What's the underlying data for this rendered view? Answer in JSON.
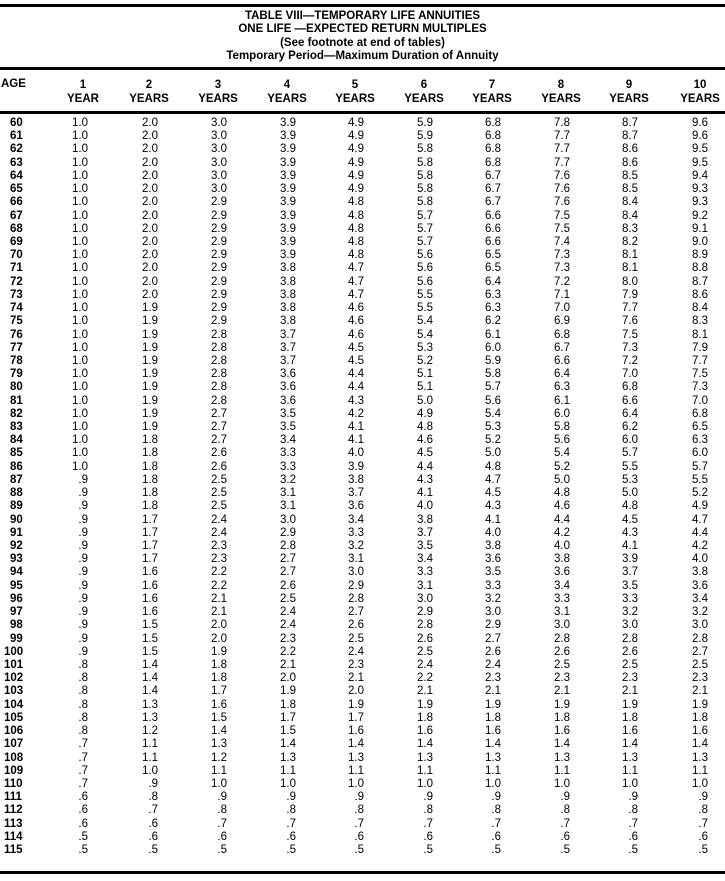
{
  "title": {
    "line1": "TABLE VIII—TEMPORARY LIFE ANNUITIES",
    "line2": "ONE LIFE —EXPECTED RETURN MULTIPLES",
    "line3": "(See footnote at end of tables)",
    "line4": "Temporary Period—Maximum Duration of Annuity"
  },
  "header": {
    "age": "AGE",
    "columns": [
      {
        "num": "1",
        "unit": "YEAR"
      },
      {
        "num": "2",
        "unit": "YEARS"
      },
      {
        "num": "3",
        "unit": "YEARS"
      },
      {
        "num": "4",
        "unit": "YEARS"
      },
      {
        "num": "5",
        "unit": "YEARS"
      },
      {
        "num": "6",
        "unit": "YEARS"
      },
      {
        "num": "7",
        "unit": "YEARS"
      },
      {
        "num": "8",
        "unit": "YEARS"
      },
      {
        "num": "9",
        "unit": "YEARS"
      },
      {
        "num": "10",
        "unit": "YEARS"
      }
    ]
  },
  "rows": [
    {
      "age": "60",
      "values": [
        "1.0",
        "2.0",
        "3.0",
        "3.9",
        "4.9",
        "5.9",
        "6.8",
        "7.8",
        "8.7",
        "9.6"
      ]
    },
    {
      "age": "61",
      "values": [
        "1.0",
        "2.0",
        "3.0",
        "3.9",
        "4.9",
        "5.9",
        "6.8",
        "7.7",
        "8.7",
        "9.6"
      ]
    },
    {
      "age": "62",
      "values": [
        "1.0",
        "2.0",
        "3.0",
        "3.9",
        "4.9",
        "5.8",
        "6.8",
        "7.7",
        "8.6",
        "9.5"
      ]
    },
    {
      "age": "63",
      "values": [
        "1.0",
        "2.0",
        "3.0",
        "3.9",
        "4.9",
        "5.8",
        "6.8",
        "7.7",
        "8.6",
        "9.5"
      ]
    },
    {
      "age": "64",
      "values": [
        "1.0",
        "2.0",
        "3.0",
        "3.9",
        "4.9",
        "5.8",
        "6.7",
        "7.6",
        "8.5",
        "9.4"
      ]
    },
    {
      "age": "65",
      "values": [
        "1.0",
        "2.0",
        "3.0",
        "3.9",
        "4.9",
        "5.8",
        "6.7",
        "7.6",
        "8.5",
        "9.3"
      ]
    },
    {
      "age": "66",
      "values": [
        "1.0",
        "2.0",
        "2.9",
        "3.9",
        "4.8",
        "5.8",
        "6.7",
        "7.6",
        "8.4",
        "9.3"
      ]
    },
    {
      "age": "67",
      "values": [
        "1.0",
        "2.0",
        "2.9",
        "3.9",
        "4.8",
        "5.7",
        "6.6",
        "7.5",
        "8.4",
        "9.2"
      ]
    },
    {
      "age": "68",
      "values": [
        "1.0",
        "2.0",
        "2.9",
        "3.9",
        "4.8",
        "5.7",
        "6.6",
        "7.5",
        "8.3",
        "9.1"
      ]
    },
    {
      "age": "69",
      "values": [
        "1.0",
        "2.0",
        "2.9",
        "3.9",
        "4.8",
        "5.7",
        "6.6",
        "7.4",
        "8.2",
        "9.0"
      ]
    },
    {
      "age": "70",
      "values": [
        "1.0",
        "2.0",
        "2.9",
        "3.9",
        "4.8",
        "5.6",
        "6.5",
        "7.3",
        "8.1",
        "8.9"
      ]
    },
    {
      "age": "71",
      "values": [
        "1.0",
        "2.0",
        "2.9",
        "3.8",
        "4.7",
        "5.6",
        "6.5",
        "7.3",
        "8.1",
        "8.8"
      ]
    },
    {
      "age": "72",
      "values": [
        "1.0",
        "2.0",
        "2.9",
        "3.8",
        "4.7",
        "5.6",
        "6.4",
        "7.2",
        "8.0",
        "8.7"
      ]
    },
    {
      "age": "73",
      "values": [
        "1.0",
        "2.0",
        "2.9",
        "3.8",
        "4.7",
        "5.5",
        "6.3",
        "7.1",
        "7.9",
        "8.6"
      ]
    },
    {
      "age": "74",
      "values": [
        "1.0",
        "1.9",
        "2.9",
        "3.8",
        "4.6",
        "5.5",
        "6.3",
        "7.0",
        "7.7",
        "8.4"
      ]
    },
    {
      "age": "75",
      "values": [
        "1.0",
        "1.9",
        "2.9",
        "3.8",
        "4.6",
        "5.4",
        "6.2",
        "6.9",
        "7.6",
        "8.3"
      ]
    },
    {
      "age": "76",
      "values": [
        "1.0",
        "1.9",
        "2.8",
        "3.7",
        "4.6",
        "5.4",
        "6.1",
        "6.8",
        "7.5",
        "8.1"
      ]
    },
    {
      "age": "77",
      "values": [
        "1.0",
        "1.9",
        "2.8",
        "3.7",
        "4.5",
        "5.3",
        "6.0",
        "6.7",
        "7.3",
        "7.9"
      ]
    },
    {
      "age": "78",
      "values": [
        "1.0",
        "1.9",
        "2.8",
        "3.7",
        "4.5",
        "5.2",
        "5.9",
        "6.6",
        "7.2",
        "7.7"
      ]
    },
    {
      "age": "79",
      "values": [
        "1.0",
        "1.9",
        "2.8",
        "3.6",
        "4.4",
        "5.1",
        "5.8",
        "6.4",
        "7.0",
        "7.5"
      ]
    },
    {
      "age": "80",
      "values": [
        "1.0",
        "1.9",
        "2.8",
        "3.6",
        "4.4",
        "5.1",
        "5.7",
        "6.3",
        "6.8",
        "7.3"
      ]
    },
    {
      "age": "81",
      "values": [
        "1.0",
        "1.9",
        "2.8",
        "3.6",
        "4.3",
        "5.0",
        "5.6",
        "6.1",
        "6.6",
        "7.0"
      ]
    },
    {
      "age": "82",
      "values": [
        "1.0",
        "1.9",
        "2.7",
        "3.5",
        "4.2",
        "4.9",
        "5.4",
        "6.0",
        "6.4",
        "6.8"
      ]
    },
    {
      "age": "83",
      "values": [
        "1.0",
        "1.9",
        "2.7",
        "3.5",
        "4.1",
        "4.8",
        "5.3",
        "5.8",
        "6.2",
        "6.5"
      ]
    },
    {
      "age": "84",
      "values": [
        "1.0",
        "1.8",
        "2.7",
        "3.4",
        "4.1",
        "4.6",
        "5.2",
        "5.6",
        "6.0",
        "6.3"
      ]
    },
    {
      "age": "85",
      "values": [
        "1.0",
        "1.8",
        "2.6",
        "3.3",
        "4.0",
        "4.5",
        "5.0",
        "5.4",
        "5.7",
        "6.0"
      ]
    },
    {
      "age": "86",
      "values": [
        "1.0",
        "1.8",
        "2.6",
        "3.3",
        "3.9",
        "4.4",
        "4.8",
        "5.2",
        "5.5",
        "5.7"
      ]
    },
    {
      "age": "87",
      "values": [
        ".9",
        "1.8",
        "2.5",
        "3.2",
        "3.8",
        "4.3",
        "4.7",
        "5.0",
        "5.3",
        "5.5"
      ]
    },
    {
      "age": "88",
      "values": [
        ".9",
        "1.8",
        "2.5",
        "3.1",
        "3.7",
        "4.1",
        "4.5",
        "4.8",
        "5.0",
        "5.2"
      ]
    },
    {
      "age": "89",
      "values": [
        ".9",
        "1.8",
        "2.5",
        "3.1",
        "3.6",
        "4.0",
        "4.3",
        "4.6",
        "4.8",
        "4.9"
      ]
    },
    {
      "age": "90",
      "values": [
        ".9",
        "1.7",
        "2.4",
        "3.0",
        "3.4",
        "3.8",
        "4.1",
        "4.4",
        "4.5",
        "4.7"
      ]
    },
    {
      "age": "91",
      "values": [
        ".9",
        "1.7",
        "2.4",
        "2.9",
        "3.3",
        "3.7",
        "4.0",
        "4.2",
        "4.3",
        "4.4"
      ]
    },
    {
      "age": "92",
      "values": [
        ".9",
        "1.7",
        "2.3",
        "2.8",
        "3.2",
        "3.5",
        "3.8",
        "4.0",
        "4.1",
        "4.2"
      ]
    },
    {
      "age": "93",
      "values": [
        ".9",
        "1.7",
        "2.3",
        "2.7",
        "3.1",
        "3.4",
        "3.6",
        "3.8",
        "3.9",
        "4.0"
      ]
    },
    {
      "age": "94",
      "values": [
        ".9",
        "1.6",
        "2.2",
        "2.7",
        "3.0",
        "3.3",
        "3.5",
        "3.6",
        "3.7",
        "3.8"
      ]
    },
    {
      "age": "95",
      "values": [
        ".9",
        "1.6",
        "2.2",
        "2.6",
        "2.9",
        "3.1",
        "3.3",
        "3.4",
        "3.5",
        "3.6"
      ]
    },
    {
      "age": "96",
      "values": [
        ".9",
        "1.6",
        "2.1",
        "2.5",
        "2.8",
        "3.0",
        "3.2",
        "3.3",
        "3.3",
        "3.4"
      ]
    },
    {
      "age": "97",
      "values": [
        ".9",
        "1.6",
        "2.1",
        "2.4",
        "2.7",
        "2.9",
        "3.0",
        "3.1",
        "3.2",
        "3.2"
      ]
    },
    {
      "age": "98",
      "values": [
        ".9",
        "1.5",
        "2.0",
        "2.4",
        "2.6",
        "2.8",
        "2.9",
        "3.0",
        "3.0",
        "3.0"
      ]
    },
    {
      "age": "99",
      "values": [
        ".9",
        "1.5",
        "2.0",
        "2.3",
        "2.5",
        "2.6",
        "2.7",
        "2.8",
        "2.8",
        "2.8"
      ]
    },
    {
      "age": "100",
      "values": [
        ".9",
        "1.5",
        "1.9",
        "2.2",
        "2.4",
        "2.5",
        "2.6",
        "2.6",
        "2.6",
        "2.7"
      ]
    },
    {
      "age": "101",
      "values": [
        ".8",
        "1.4",
        "1.8",
        "2.1",
        "2.3",
        "2.4",
        "2.4",
        "2.5",
        "2.5",
        "2.5"
      ]
    },
    {
      "age": "102",
      "values": [
        ".8",
        "1.4",
        "1.8",
        "2.0",
        "2.1",
        "2.2",
        "2.3",
        "2.3",
        "2.3",
        "2.3"
      ]
    },
    {
      "age": "103",
      "values": [
        ".8",
        "1.4",
        "1.7",
        "1.9",
        "2.0",
        "2.1",
        "2.1",
        "2.1",
        "2.1",
        "2.1"
      ]
    },
    {
      "age": "104",
      "values": [
        ".8",
        "1.3",
        "1.6",
        "1.8",
        "1.9",
        "1.9",
        "1.9",
        "1.9",
        "1.9",
        "1.9"
      ]
    },
    {
      "age": "105",
      "values": [
        ".8",
        "1.3",
        "1.5",
        "1.7",
        "1.7",
        "1.8",
        "1.8",
        "1.8",
        "1.8",
        "1.8"
      ]
    },
    {
      "age": "106",
      "values": [
        ".8",
        "1.2",
        "1.4",
        "1.5",
        "1.6",
        "1.6",
        "1.6",
        "1.6",
        "1.6",
        "1.6"
      ]
    },
    {
      "age": "107",
      "values": [
        ".7",
        "1.1",
        "1.3",
        "1.4",
        "1.4",
        "1.4",
        "1.4",
        "1.4",
        "1.4",
        "1.4"
      ]
    },
    {
      "age": "108",
      "values": [
        ".7",
        "1.1",
        "1.2",
        "1.3",
        "1.3",
        "1.3",
        "1.3",
        "1.3",
        "1.3",
        "1.3"
      ]
    },
    {
      "age": "109",
      "values": [
        ".7",
        "1.0",
        "1.1",
        "1.1",
        "1.1",
        "1.1",
        "1.1",
        "1.1",
        "1.1",
        "1.1"
      ]
    },
    {
      "age": "110",
      "values": [
        ".7",
        ".9",
        "1.0",
        "1.0",
        "1.0",
        "1.0",
        "1.0",
        "1.0",
        "1.0",
        "1.0"
      ]
    },
    {
      "age": "111",
      "values": [
        ".6",
        ".8",
        ".9",
        ".9",
        ".9",
        ".9",
        ".9",
        ".9",
        ".9",
        ".9"
      ]
    },
    {
      "age": "112",
      "values": [
        ".6",
        ".7",
        ".8",
        ".8",
        ".8",
        ".8",
        ".8",
        ".8",
        ".8",
        ".8"
      ]
    },
    {
      "age": "113",
      "values": [
        ".6",
        ".6",
        ".7",
        ".7",
        ".7",
        ".7",
        ".7",
        ".7",
        ".7",
        ".7"
      ]
    },
    {
      "age": "114",
      "values": [
        ".5",
        ".6",
        ".6",
        ".6",
        ".6",
        ".6",
        ".6",
        ".6",
        ".6",
        ".6"
      ]
    },
    {
      "age": "115",
      "values": [
        ".5",
        ".5",
        ".5",
        ".5",
        ".5",
        ".5",
        ".5",
        ".5",
        ".5",
        ".5"
      ]
    }
  ]
}
